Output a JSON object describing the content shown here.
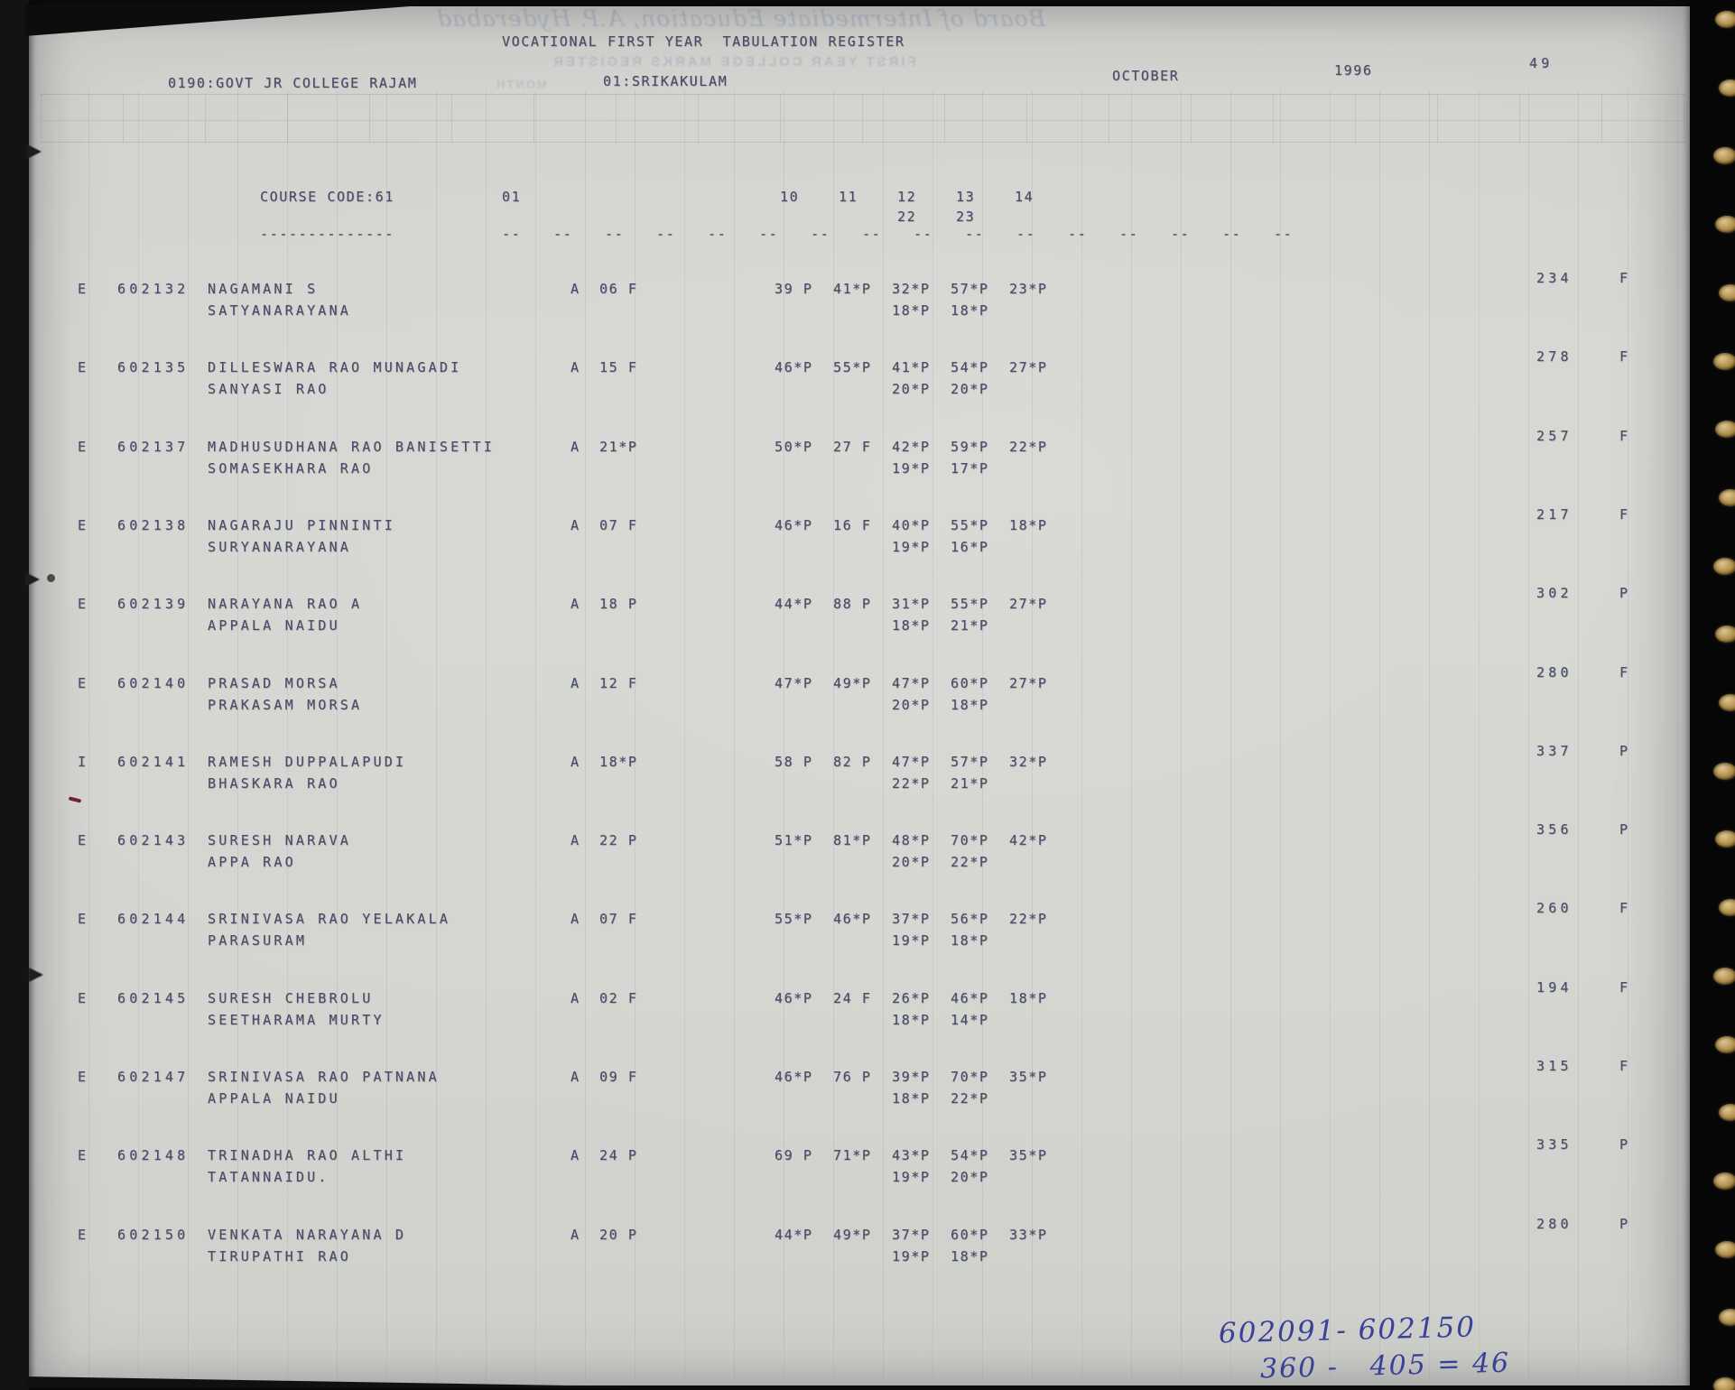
{
  "document": {
    "title": "VOCATIONAL FIRST YEAR  TABULATION REGISTER",
    "college": "0190:GOVT JR COLLEGE RAJAM",
    "district": "01:SRIKAKULAM",
    "month": "OCTOBER",
    "year": "1996",
    "page_number": "49",
    "course_label": "COURSE CODE:61",
    "course_underline": "--------------",
    "medium_col_header": "01",
    "subject_headers_row1": [
      "10",
      "11",
      "12",
      "13",
      "14"
    ],
    "subject_headers_row2": [
      "22",
      "23"
    ],
    "column_dash": "--",
    "attendance_prefix": "A"
  },
  "students": [
    {
      "status": "E",
      "roll": "602132",
      "name": "NAGAMANI S",
      "guardian": "SATYANARAYANA",
      "attendance": "06 F",
      "marks_row1": [
        "39 P",
        "41*P",
        "32*P",
        "57*P",
        "23*P"
      ],
      "marks_row2": [
        "18*P",
        "18*P"
      ],
      "total": "234",
      "result": "F"
    },
    {
      "status": "E",
      "roll": "602135",
      "name": "DILLESWARA RAO MUNAGADI",
      "guardian": "SANYASI RAO",
      "attendance": "15 F",
      "marks_row1": [
        "46*P",
        "55*P",
        "41*P",
        "54*P",
        "27*P"
      ],
      "marks_row2": [
        "20*P",
        "20*P"
      ],
      "total": "278",
      "result": "F"
    },
    {
      "status": "E",
      "roll": "602137",
      "name": "MADHUSUDHANA RAO BANISETTI",
      "guardian": "SOMASEKHARA RAO",
      "attendance": "21*P",
      "marks_row1": [
        "50*P",
        "27 F",
        "42*P",
        "59*P",
        "22*P"
      ],
      "marks_row2": [
        "19*P",
        "17*P"
      ],
      "total": "257",
      "result": "F"
    },
    {
      "status": "E",
      "roll": "602138",
      "name": "NAGARAJU PINNINTI",
      "guardian": "SURYANARAYANA",
      "attendance": "07 F",
      "marks_row1": [
        "46*P",
        "16 F",
        "40*P",
        "55*P",
        "18*P"
      ],
      "marks_row2": [
        "19*P",
        "16*P"
      ],
      "total": "217",
      "result": "F"
    },
    {
      "status": "E",
      "roll": "602139",
      "name": "NARAYANA RAO A",
      "guardian": "APPALA NAIDU",
      "attendance": "18 P",
      "marks_row1": [
        "44*P",
        "88 P",
        "31*P",
        "55*P",
        "27*P"
      ],
      "marks_row2": [
        "18*P",
        "21*P"
      ],
      "total": "302",
      "result": "P"
    },
    {
      "status": "E",
      "roll": "602140",
      "name": "PRASAD MORSA",
      "guardian": "PRAKASAM MORSA",
      "attendance": "12 F",
      "marks_row1": [
        "47*P",
        "49*P",
        "47*P",
        "60*P",
        "27*P"
      ],
      "marks_row2": [
        "20*P",
        "18*P"
      ],
      "total": "280",
      "result": "F"
    },
    {
      "status": "I",
      "roll": "602141",
      "name": "RAMESH DUPPALAPUDI",
      "guardian": "BHASKARA RAO",
      "attendance": "18*P",
      "marks_row1": [
        "58 P",
        "82 P",
        "47*P",
        "57*P",
        "32*P"
      ],
      "marks_row2": [
        "22*P",
        "21*P"
      ],
      "total": "337",
      "result": "P"
    },
    {
      "status": "E",
      "roll": "602143",
      "name": "SURESH NARAVA",
      "guardian": "APPA RAO",
      "attendance": "22 P",
      "marks_row1": [
        "51*P",
        "81*P",
        "48*P",
        "70*P",
        "42*P"
      ],
      "marks_row2": [
        "20*P",
        "22*P"
      ],
      "total": "356",
      "result": "P"
    },
    {
      "status": "E",
      "roll": "602144",
      "name": "SRINIVASA RAO YELAKALA",
      "guardian": "PARASURAM",
      "attendance": "07 F",
      "marks_row1": [
        "55*P",
        "46*P",
        "37*P",
        "56*P",
        "22*P"
      ],
      "marks_row2": [
        "19*P",
        "18*P"
      ],
      "total": "260",
      "result": "F"
    },
    {
      "status": "E",
      "roll": "602145",
      "name": "SURESH CHEBROLU",
      "guardian": "SEETHARAMA MURTY",
      "attendance": "02 F",
      "marks_row1": [
        "46*P",
        "24 F",
        "26*P",
        "46*P",
        "18*P"
      ],
      "marks_row2": [
        "18*P",
        "14*P"
      ],
      "total": "194",
      "result": "F"
    },
    {
      "status": "E",
      "roll": "602147",
      "name": "SRINIVASA RAO PATNANA",
      "guardian": "APPALA NAIDU",
      "attendance": "09 F",
      "marks_row1": [
        "46*P",
        "76 P",
        "39*P",
        "70*P",
        "35*P"
      ],
      "marks_row2": [
        "18*P",
        "22*P"
      ],
      "total": "315",
      "result": "F"
    },
    {
      "status": "E",
      "roll": "602148",
      "name": "TRINADHA RAO ALTHI",
      "guardian": "TATANNAIDU.",
      "attendance": "24 P",
      "marks_row1": [
        "69 P",
        "71*P",
        "43*P",
        "54*P",
        "35*P"
      ],
      "marks_row2": [
        "19*P",
        "20*P"
      ],
      "total": "335",
      "result": "P"
    },
    {
      "status": "E",
      "roll": "602150",
      "name": "VENKATA NARAYANA D",
      "guardian": "TIRUPATHI RAO",
      "attendance": "20 P",
      "marks_row1": [
        "44*P",
        "49*P",
        "37*P",
        "60*P",
        "33*P"
      ],
      "marks_row2": [
        "19*P",
        "18*P"
      ],
      "total": "280",
      "result": "P"
    }
  ],
  "handwriting": {
    "range_line": "602091- 602150",
    "calc_line": "360 -   405 = 46"
  },
  "bleedthrough": {
    "script_line": "Board of Intermediate Education, A.P. Hyderabad",
    "register_line": "FIRST YEAR COLLEGE MARKS REGISTER",
    "month_label": "MONTH"
  }
}
